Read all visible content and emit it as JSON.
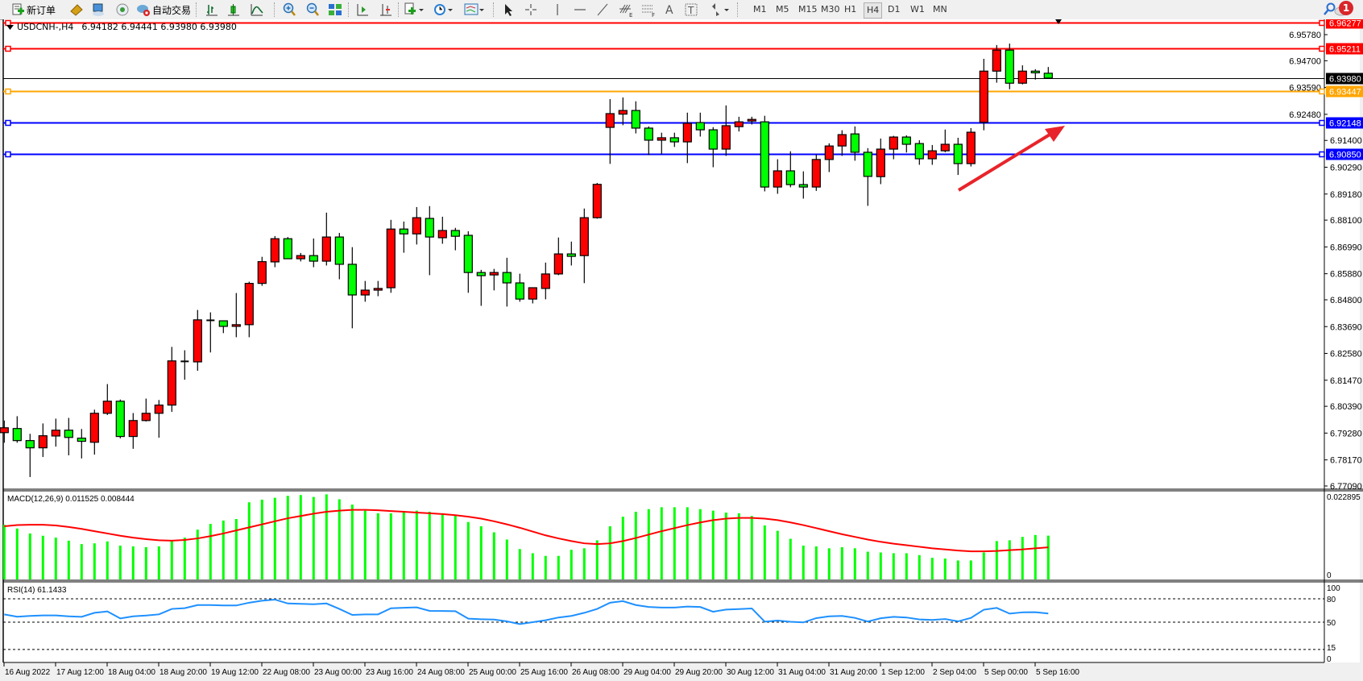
{
  "toolbar": {
    "new_order_label": "新订单",
    "auto_trading_label": "自动交易",
    "icons": [
      "new-order-icon",
      "history-center-icon",
      "profiles-icon",
      "signals-icon",
      "auto-trading-icon",
      "bar-chart-icon",
      "candlestick-icon",
      "line-chart-icon",
      "zoom-in-icon",
      "zoom-out-icon",
      "tile-windows-icon",
      "autoscroll-icon",
      "chart-shift-icon",
      "indicators-icon",
      "periods-icon",
      "templates-icon",
      "cursor-icon",
      "crosshair-icon",
      "vertical-line-icon",
      "horizontal-line-icon",
      "trendline-icon",
      "fibonacci-expansion-icon",
      "fibonacci-fan-icon",
      "text-icon",
      "text-label-icon",
      "arrows-icon",
      "search-icon",
      "notifications-icon"
    ],
    "timeframes": [
      "M1",
      "M5",
      "M15",
      "M30",
      "H1",
      "H4",
      "D1",
      "W1",
      "MN"
    ],
    "active_timeframe": "H4",
    "notification_count": "1"
  },
  "header": {
    "symbol": "USDCNH-,H4",
    "ohlc": "6.94182 6.94441 6.93980 6.93980"
  },
  "colors": {
    "bull": "#ff0000",
    "bear": "#00ff00",
    "macd_hist": "#00ff00",
    "signal": "#ff0000",
    "rsi": "#1e90ff"
  },
  "price_axis": {
    "ticks": [
      "6.95780",
      "6.94700",
      "6.93590",
      "6.92480",
      "6.91400",
      "6.90290",
      "6.89180",
      "6.88100",
      "6.86990",
      "6.85880",
      "6.84800",
      "6.83690",
      "6.82580",
      "6.81470",
      "6.80390",
      "6.79280",
      "6.78170",
      "6.77090"
    ]
  },
  "levels": [
    {
      "price": "6.96277",
      "color": "#ff0000"
    },
    {
      "price": "6.95211",
      "color": "#ff0000"
    },
    {
      "price": "6.93980",
      "color": "#000000",
      "kind": "bid"
    },
    {
      "price": "6.93447",
      "color": "#ffa500"
    },
    {
      "price": "6.92148",
      "color": "#0000ff"
    },
    {
      "price": "6.90850",
      "color": "#0000ff"
    }
  ],
  "time_axis": {
    "labels": [
      "16 Aug 2022",
      "17 Aug 12:00",
      "18 Aug 04:00",
      "18 Aug 20:00",
      "19 Aug 12:00",
      "22 Aug 08:00",
      "23 Aug 00:00",
      "23 Aug 16:00",
      "24 Aug 08:00",
      "25 Aug 00:00",
      "25 Aug 16:00",
      "26 Aug 08:00",
      "29 Aug 04:00",
      "29 Aug 20:00",
      "30 Aug 12:00",
      "31 Aug 04:00",
      "31 Aug 20:00",
      "1 Sep 12:00",
      "2 Sep 04:00",
      "5 Sep 00:00",
      "5 Sep 16:00"
    ]
  },
  "chart_data": {
    "type": "candlestick",
    "ohlc_fields": [
      "open",
      "high",
      "low",
      "close"
    ],
    "candles": [
      [
        6.793,
        6.798,
        6.7888,
        6.795
      ],
      [
        6.7947,
        6.7998,
        6.7888,
        6.7897
      ],
      [
        6.7897,
        6.7925,
        6.7746,
        6.7867
      ],
      [
        6.7867,
        6.7968,
        6.7829,
        6.7917
      ],
      [
        6.7916,
        6.7988,
        6.7872,
        6.794
      ],
      [
        6.794,
        6.7991,
        6.7836,
        6.791
      ],
      [
        6.7907,
        6.7945,
        6.7823,
        6.7894
      ],
      [
        6.789,
        6.8025,
        6.7839,
        6.801
      ],
      [
        6.801,
        6.8131,
        6.8003,
        6.806
      ],
      [
        6.806,
        6.8067,
        6.7906,
        6.7914
      ],
      [
        6.7914,
        6.8011,
        6.7863,
        6.798
      ],
      [
        6.798,
        6.8071,
        6.7976,
        6.801
      ],
      [
        6.801,
        6.8065,
        6.7909,
        6.8044
      ],
      [
        6.8044,
        6.8285,
        6.8016,
        6.8227
      ],
      [
        6.8224,
        6.8271,
        6.8149,
        6.8225
      ],
      [
        6.8223,
        6.8438,
        6.8186,
        6.8397
      ],
      [
        6.8396,
        6.8428,
        6.8262,
        6.8395
      ],
      [
        6.8393,
        6.8394,
        6.8342,
        6.837
      ],
      [
        6.837,
        6.8508,
        6.8325,
        6.8377
      ],
      [
        6.8377,
        6.8555,
        6.8325,
        6.8548
      ],
      [
        6.8548,
        6.8658,
        6.8538,
        6.8638
      ],
      [
        6.8637,
        6.8744,
        6.8615,
        6.8733
      ],
      [
        6.8733,
        6.874,
        6.865,
        6.865
      ],
      [
        6.865,
        6.8674,
        6.8639,
        6.8663
      ],
      [
        6.8663,
        6.8734,
        6.8615,
        6.864
      ],
      [
        6.864,
        6.8841,
        6.8622,
        6.874
      ],
      [
        6.874,
        6.8757,
        6.8565,
        6.8627
      ],
      [
        6.8627,
        6.8698,
        6.8362,
        6.85
      ],
      [
        6.85,
        6.8558,
        6.8472,
        6.852
      ],
      [
        6.852,
        6.8558,
        6.8495,
        6.8527
      ],
      [
        6.853,
        6.8811,
        6.8509,
        6.8773
      ],
      [
        6.8773,
        6.8804,
        6.8675,
        6.8753
      ],
      [
        6.8753,
        6.8864,
        6.8709,
        6.882
      ],
      [
        6.8817,
        6.8868,
        6.8582,
        6.874
      ],
      [
        6.8737,
        6.8824,
        6.8712,
        6.8767
      ],
      [
        6.8767,
        6.8778,
        6.8685,
        6.8743
      ],
      [
        6.8747,
        6.8764,
        6.8509,
        6.8593
      ],
      [
        6.8593,
        6.8604,
        6.8455,
        6.858
      ],
      [
        6.8583,
        6.8608,
        6.8519,
        6.8593
      ],
      [
        6.8593,
        6.8654,
        6.8452,
        6.855
      ],
      [
        6.855,
        6.8588,
        6.8472,
        6.8483
      ],
      [
        6.8483,
        6.853,
        6.8465,
        6.853
      ],
      [
        6.8527,
        6.8634,
        6.8482,
        6.8587
      ],
      [
        6.8587,
        6.8738,
        6.8582,
        6.867
      ],
      [
        6.867,
        6.8721,
        6.8622,
        6.866
      ],
      [
        6.8663,
        6.8858,
        6.8549,
        6.882
      ],
      [
        6.882,
        6.8964,
        6.8816,
        6.8958
      ],
      [
        6.9194,
        6.9311,
        6.9043,
        6.9251
      ],
      [
        6.9249,
        6.9318,
        6.9203,
        6.9264
      ],
      [
        6.9264,
        6.9302,
        6.9169,
        6.9191
      ],
      [
        6.9191,
        6.9198,
        6.9079,
        6.9141
      ],
      [
        6.9141,
        6.9172,
        6.9083,
        6.9151
      ],
      [
        6.9151,
        6.9172,
        6.9113,
        6.9134
      ],
      [
        6.9134,
        6.9255,
        6.9046,
        6.9211
      ],
      [
        6.9214,
        6.9255,
        6.9156,
        6.9184
      ],
      [
        6.9184,
        6.9195,
        6.9029,
        6.9104
      ],
      [
        6.9104,
        6.9285,
        6.9076,
        6.9201
      ],
      [
        6.9197,
        6.9238,
        6.9177,
        6.9217
      ],
      [
        6.9224,
        6.9238,
        6.9206,
        6.9227
      ],
      [
        6.9217,
        6.9242,
        6.8929,
        6.8947
      ],
      [
        6.8947,
        6.9062,
        6.8919,
        6.9014
      ],
      [
        6.9014,
        6.9095,
        6.8946,
        6.8957
      ],
      [
        6.8957,
        6.9012,
        6.8899,
        6.8947
      ],
      [
        6.8947,
        6.9082,
        6.8931,
        6.9061
      ],
      [
        6.9061,
        6.9128,
        6.9009,
        6.9117
      ],
      [
        6.9117,
        6.9182,
        6.9076,
        6.9164
      ],
      [
        6.9167,
        6.9198,
        6.9056,
        6.9091
      ],
      [
        6.9091,
        6.9108,
        6.8869,
        6.8991
      ],
      [
        6.899,
        6.9148,
        6.8959,
        6.9104
      ],
      [
        6.9104,
        6.9159,
        6.9062,
        6.9154
      ],
      [
        6.9154,
        6.9161,
        6.909,
        6.9124
      ],
      [
        6.9127,
        6.9141,
        6.9039,
        6.9064
      ],
      [
        6.9064,
        6.9121,
        6.9039,
        6.9097
      ],
      [
        6.9097,
        6.9185,
        6.9091,
        6.9124
      ],
      [
        6.9124,
        6.9151,
        6.8997,
        6.9044
      ],
      [
        6.9044,
        6.9191,
        6.9032,
        6.9174
      ],
      [
        6.9215,
        6.9478,
        6.9182,
        6.9427
      ],
      [
        6.9427,
        6.9535,
        6.9379,
        6.9514
      ],
      [
        6.9514,
        6.9541,
        6.9352,
        6.9377
      ],
      [
        6.9377,
        6.9451,
        6.9372,
        6.9427
      ],
      [
        6.9427,
        6.9435,
        6.9392,
        6.942
      ],
      [
        6.94182,
        6.94441,
        6.9398,
        6.9398
      ]
    ],
    "ylim": [
      6.7709,
      6.9628
    ],
    "macd": {
      "label": "MACD(12,26,9) 0.011525 0.008444",
      "axis_top": "0.022895",
      "axis_zero": "0",
      "ylim": [
        0,
        0.022895
      ],
      "histogram": [
        0.0144,
        0.0134,
        0.0121,
        0.0115,
        0.011,
        0.0102,
        0.0093,
        0.0095,
        0.01,
        0.0089,
        0.0087,
        0.0085,
        0.0087,
        0.0102,
        0.011,
        0.0131,
        0.0146,
        0.0155,
        0.0159,
        0.0203,
        0.021,
        0.0215,
        0.022,
        0.0222,
        0.0217,
        0.0224,
        0.0211,
        0.0197,
        0.0181,
        0.0174,
        0.0174,
        0.0178,
        0.0181,
        0.0178,
        0.0174,
        0.0169,
        0.0151,
        0.014,
        0.0124,
        0.0105,
        0.008,
        0.0069,
        0.0062,
        0.0062,
        0.0078,
        0.0082,
        0.0103,
        0.014,
        0.0165,
        0.0178,
        0.0185,
        0.019,
        0.019,
        0.019,
        0.0185,
        0.0181,
        0.0176,
        0.0174,
        0.0167,
        0.0142,
        0.0128,
        0.0107,
        0.0089,
        0.0087,
        0.0082,
        0.0085,
        0.0082,
        0.0073,
        0.0071,
        0.0069,
        0.0069,
        0.0064,
        0.0057,
        0.0055,
        0.005,
        0.005,
        0.0071,
        0.0101,
        0.0103,
        0.0112,
        0.0117,
        0.011525
      ],
      "signal": [
        0.014,
        0.0143,
        0.0144,
        0.0144,
        0.0142,
        0.0138,
        0.0133,
        0.0127,
        0.0121,
        0.0115,
        0.011,
        0.0106,
        0.0103,
        0.0102,
        0.0104,
        0.0108,
        0.0114,
        0.0121,
        0.0129,
        0.0137,
        0.0145,
        0.0153,
        0.0161,
        0.0167,
        0.0173,
        0.0178,
        0.0181,
        0.0183,
        0.0183,
        0.0182,
        0.018,
        0.0178,
        0.0176,
        0.0174,
        0.0172,
        0.0169,
        0.0165,
        0.016,
        0.0153,
        0.0145,
        0.0136,
        0.0126,
        0.0116,
        0.0108,
        0.0101,
        0.0095,
        0.0093,
        0.0095,
        0.0101,
        0.0109,
        0.0118,
        0.0127,
        0.0135,
        0.0143,
        0.015,
        0.0156,
        0.016,
        0.0162,
        0.0162,
        0.016,
        0.0156,
        0.015,
        0.0143,
        0.0135,
        0.0127,
        0.0119,
        0.0112,
        0.0105,
        0.0099,
        0.0094,
        0.009,
        0.0086,
        0.0082,
        0.0079,
        0.0076,
        0.0074,
        0.0074,
        0.0075,
        0.0077,
        0.0079,
        0.0082,
        0.008444
      ]
    },
    "rsi": {
      "label": "RSI(14) 61.1433",
      "levels": [
        "100",
        "80",
        "50",
        "15",
        "0"
      ],
      "values": [
        60.0,
        57.0,
        58.0,
        58.6,
        58.6,
        57.5,
        56.9,
        62.0,
        63.8,
        54.8,
        57.5,
        58.5,
        60.0,
        67.0,
        68.0,
        72.0,
        72.0,
        71.4,
        71.4,
        75.0,
        77.5,
        79.0,
        74.0,
        73.5,
        73.0,
        74.0,
        67.0,
        59.3,
        60.0,
        60.0,
        67.9,
        68.5,
        69.0,
        64.5,
        64.3,
        64.1,
        54.5,
        53.8,
        53.4,
        51.0,
        47.6,
        50.0,
        52.5,
        56.0,
        58.0,
        62.0,
        67.0,
        75.0,
        77.0,
        72.0,
        69.5,
        68.8,
        68.8,
        70.0,
        69.5,
        63.4,
        66.2,
        66.8,
        67.6,
        50.7,
        52.0,
        50.5,
        49.7,
        55.2,
        57.5,
        58.0,
        55.5,
        50.8,
        55.0,
        56.8,
        56.0,
        53.5,
        52.8,
        54.0,
        51.0,
        55.5,
        66.0,
        68.3,
        61.0,
        62.6,
        62.8,
        61.1433
      ]
    }
  }
}
